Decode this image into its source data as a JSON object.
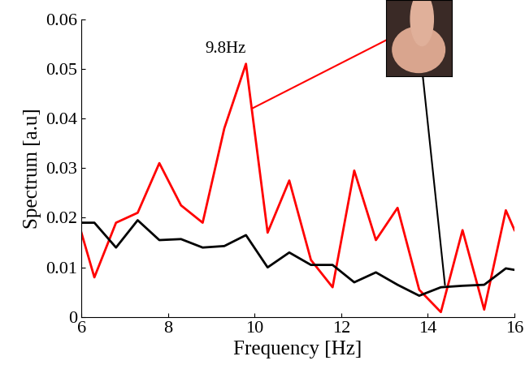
{
  "chart_data": {
    "type": "line",
    "x_label": "Frequency [Hz]",
    "y_label": "Spectrum [a.u]",
    "annotation": {
      "text": "9.8Hz",
      "x": 9.8,
      "y": 0.051
    },
    "xlim": [
      6,
      16
    ],
    "xticks": [
      6,
      8,
      10,
      12,
      14,
      16
    ],
    "ylim": [
      0,
      0.06
    ],
    "yticks": [
      0,
      0.01,
      0.02,
      0.03,
      0.04,
      0.05,
      0.06
    ],
    "grid": false,
    "x": [
      6.0,
      6.3,
      6.8,
      7.3,
      7.8,
      8.3,
      8.8,
      9.3,
      9.8,
      10.3,
      10.8,
      11.3,
      11.8,
      12.3,
      12.8,
      13.3,
      13.8,
      14.3,
      14.8,
      15.3,
      15.8,
      16.0
    ],
    "series": [
      {
        "color": "#ff0000",
        "values": [
          0.017,
          0.008,
          0.019,
          0.021,
          0.031,
          0.0225,
          0.019,
          0.038,
          0.051,
          0.017,
          0.0275,
          0.0115,
          0.006,
          0.0295,
          0.0155,
          0.022,
          0.0055,
          0.001,
          0.0175,
          0.0015,
          0.0215,
          0.0175
        ]
      },
      {
        "color": "#000000",
        "values": [
          0.019,
          0.019,
          0.014,
          0.0195,
          0.0155,
          0.0157,
          0.014,
          0.0143,
          0.0165,
          0.01,
          0.013,
          0.0105,
          0.0105,
          0.007,
          0.009,
          0.0065,
          0.0043,
          0.006,
          0.0063,
          0.0065,
          0.0098,
          0.0095
        ]
      }
    ]
  }
}
